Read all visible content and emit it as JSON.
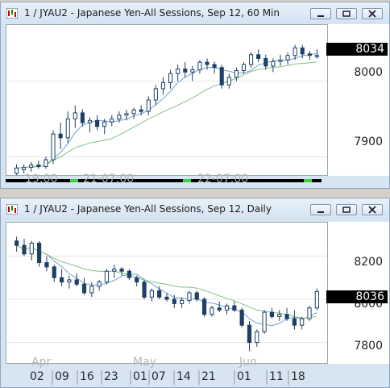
{
  "top_window": {
    "title": "1 / JYAU2 - Japanese Yen-All Sessions, Sep 12, 60 Min",
    "price_label": "8034",
    "y_ticks": [
      "8000",
      "7900"
    ],
    "x_labels": [
      "19:00",
      "21-07:00",
      "22-07:00"
    ]
  },
  "bottom_window": {
    "title": "1 / JYAU2 - Japanese Yen-All Sessions, Sep 12, Daily",
    "price_label": "8036",
    "y_ticks": [
      "8200",
      "8000",
      "7800"
    ],
    "month_labels": [
      "Apr",
      "May",
      "Jun"
    ],
    "day_labels": [
      "02",
      "09",
      "16",
      "23",
      "01",
      "07",
      "14",
      "21",
      "01",
      "11",
      "18"
    ]
  },
  "colors": {
    "candle": "#1f3f66",
    "candle_fill": "#ffffff",
    "down_tick": "#c0392b",
    "ma_fast": "#6fa2d6",
    "ma_slow": "#7fc47f",
    "session_on": "#3cd23c",
    "session_off": "#000000"
  },
  "chart_data": [
    {
      "type": "candlestick",
      "y_range": [
        7880,
        8070
      ],
      "ohlc": [
        [
          7878,
          7890,
          7870,
          7885
        ],
        [
          7883,
          7890,
          7878,
          7886
        ],
        [
          7886,
          7893,
          7880,
          7889
        ],
        [
          7889,
          7895,
          7884,
          7887
        ],
        [
          7887,
          7900,
          7884,
          7896
        ],
        [
          7896,
          7935,
          7890,
          7930
        ],
        [
          7930,
          7945,
          7910,
          7925
        ],
        [
          7925,
          7960,
          7918,
          7950
        ],
        [
          7950,
          7968,
          7938,
          7958
        ],
        [
          7958,
          7963,
          7940,
          7945
        ],
        [
          7945,
          7952,
          7932,
          7948
        ],
        [
          7948,
          7955,
          7935,
          7940
        ],
        [
          7940,
          7950,
          7930,
          7946
        ],
        [
          7946,
          7955,
          7940,
          7950
        ],
        [
          7950,
          7960,
          7945,
          7955
        ],
        [
          7955,
          7962,
          7948,
          7957
        ],
        [
          7957,
          7965,
          7950,
          7962
        ],
        [
          7962,
          7968,
          7955,
          7960
        ],
        [
          7960,
          7980,
          7955,
          7975
        ],
        [
          7975,
          7995,
          7968,
          7990
        ],
        [
          7990,
          8005,
          7982,
          7998
        ],
        [
          7998,
          8015,
          7990,
          8010
        ],
        [
          8010,
          8022,
          8000,
          8016
        ],
        [
          8016,
          8025,
          8005,
          8012
        ],
        [
          8012,
          8020,
          8000,
          8015
        ],
        [
          8015,
          8028,
          8010,
          8025
        ],
        [
          8025,
          8030,
          8015,
          8022
        ],
        [
          8022,
          8026,
          8010,
          8018
        ],
        [
          8018,
          8022,
          7990,
          7995
        ],
        [
          7995,
          8010,
          7990,
          8005
        ],
        [
          8005,
          8018,
          8000,
          8014
        ],
        [
          8014,
          8025,
          8010,
          8022
        ],
        [
          8022,
          8038,
          8018,
          8035
        ],
        [
          8035,
          8042,
          8025,
          8030
        ],
        [
          8030,
          8035,
          8015,
          8020
        ],
        [
          8020,
          8030,
          8012,
          8026
        ],
        [
          8026,
          8035,
          8020,
          8028
        ],
        [
          8028,
          8038,
          8022,
          8034
        ],
        [
          8034,
          8048,
          8028,
          8044
        ],
        [
          8044,
          8048,
          8030,
          8036
        ],
        [
          8036,
          8040,
          8028,
          8034
        ],
        [
          8034,
          8042,
          8030,
          8034
        ]
      ]
    },
    {
      "type": "candlestick",
      "y_range": [
        7720,
        8340
      ],
      "ohlc": [
        [
          8270,
          8290,
          8220,
          8250
        ],
        [
          8250,
          8280,
          8200,
          8210
        ],
        [
          8210,
          8270,
          8180,
          8260
        ],
        [
          8260,
          8270,
          8150,
          8170
        ],
        [
          8170,
          8200,
          8130,
          8150
        ],
        [
          8150,
          8160,
          8080,
          8100
        ],
        [
          8100,
          8140,
          8060,
          8080
        ],
        [
          8080,
          8110,
          8050,
          8090
        ],
        [
          8090,
          8120,
          8060,
          8070
        ],
        [
          8070,
          8100,
          8020,
          8030
        ],
        [
          8030,
          8080,
          8010,
          8060
        ],
        [
          8060,
          8090,
          8040,
          8080
        ],
        [
          8080,
          8140,
          8070,
          8130
        ],
        [
          8130,
          8160,
          8100,
          8140
        ],
        [
          8140,
          8150,
          8110,
          8130
        ],
        [
          8130,
          8140,
          8090,
          8100
        ],
        [
          8100,
          8110,
          8060,
          8080
        ],
        [
          8080,
          8090,
          8000,
          8010
        ],
        [
          8010,
          8050,
          7990,
          8040
        ],
        [
          8040,
          8060,
          8000,
          8010
        ],
        [
          8010,
          8030,
          7990,
          8000
        ],
        [
          8000,
          8020,
          7960,
          7980
        ],
        [
          7980,
          8010,
          7960,
          7995
        ],
        [
          7995,
          8040,
          7980,
          8030
        ],
        [
          8030,
          8040,
          7990,
          8000
        ],
        [
          8000,
          8010,
          7920,
          7930
        ],
        [
          7930,
          7970,
          7920,
          7960
        ],
        [
          7960,
          7990,
          7940,
          7950
        ],
        [
          7950,
          7980,
          7930,
          7970
        ],
        [
          7970,
          7990,
          7940,
          7950
        ],
        [
          7950,
          7960,
          7870,
          7880
        ],
        [
          7880,
          7900,
          7760,
          7800
        ],
        [
          7800,
          7860,
          7780,
          7850
        ],
        [
          7850,
          7950,
          7840,
          7940
        ],
        [
          7940,
          7960,
          7910,
          7920
        ],
        [
          7920,
          7950,
          7900,
          7930
        ],
        [
          7930,
          7960,
          7900,
          7910
        ],
        [
          7910,
          7950,
          7860,
          7880
        ],
        [
          7880,
          7920,
          7860,
          7910
        ],
        [
          7910,
          7970,
          7900,
          7960
        ],
        [
          7960,
          8050,
          7950,
          8036
        ]
      ]
    }
  ]
}
